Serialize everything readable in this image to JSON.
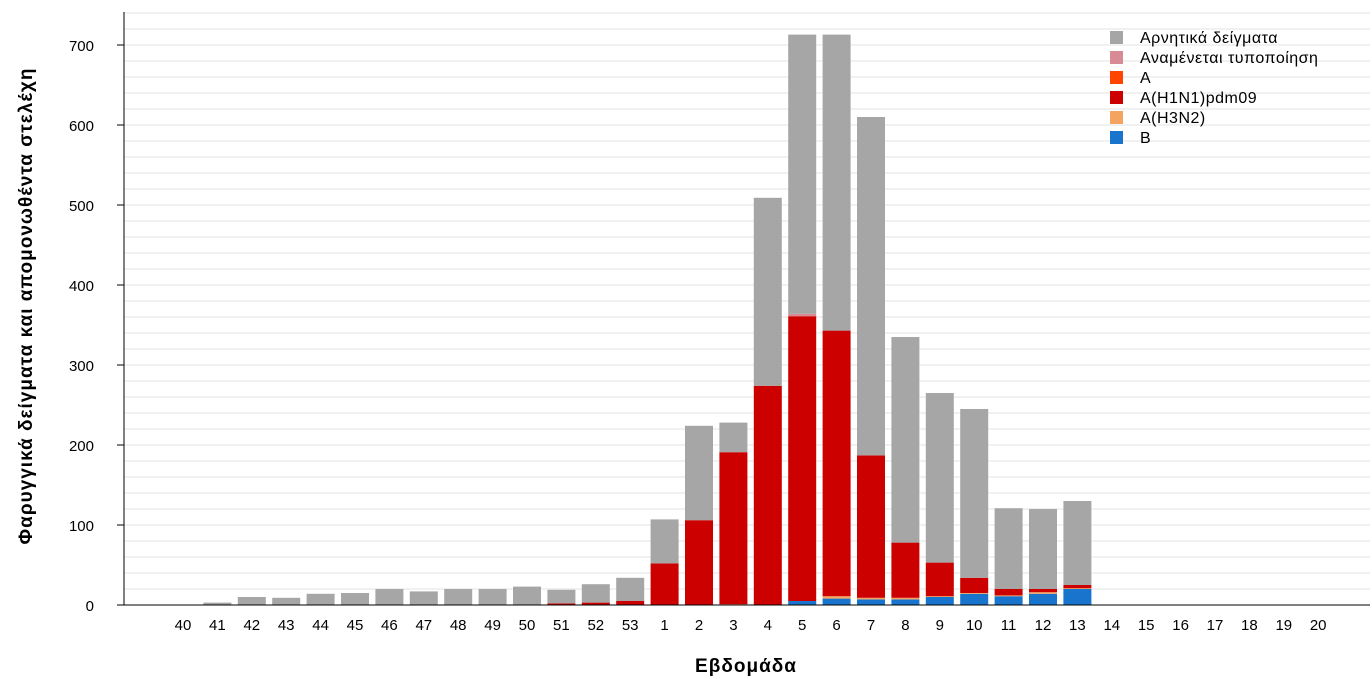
{
  "chart_data": {
    "type": "bar",
    "stacked": true,
    "xlabel": "Εβδομάδα",
    "ylabel": "Φαρυγγικά δείγματα και απομονωθέντα στελέχη",
    "ylim": [
      0,
      740
    ],
    "yticks": [
      0,
      100,
      200,
      300,
      400,
      500,
      600,
      700
    ],
    "grid": true,
    "legend_position": "top-right",
    "categories": [
      "40",
      "41",
      "42",
      "43",
      "44",
      "45",
      "46",
      "47",
      "48",
      "49",
      "50",
      "51",
      "52",
      "53",
      "1",
      "2",
      "3",
      "4",
      "5",
      "6",
      "7",
      "8",
      "9",
      "10",
      "11",
      "12",
      "13",
      "14",
      "15",
      "16",
      "17",
      "18",
      "19",
      "20"
    ],
    "series": [
      {
        "name": "B",
        "color": "#1874CD",
        "values": [
          0,
          0,
          0,
          0,
          0,
          0,
          0,
          0,
          0,
          0,
          0,
          0,
          0,
          0,
          0,
          0,
          0,
          0,
          5,
          8,
          7,
          7,
          10,
          14,
          11,
          14,
          20,
          0,
          0,
          0,
          0,
          0,
          0,
          0
        ]
      },
      {
        "name": "A(H3N2)",
        "color": "#F4A460",
        "values": [
          0,
          0,
          0,
          0,
          0,
          0,
          0,
          0,
          0,
          0,
          0,
          0,
          0,
          0,
          0,
          0,
          1,
          0,
          0,
          3,
          2,
          2,
          1,
          1,
          1,
          2,
          1,
          0,
          0,
          0,
          0,
          0,
          0,
          0
        ]
      },
      {
        "name": "A(H1N1)pdm09",
        "color": "#CD0000",
        "values": [
          0,
          0,
          0,
          0,
          0,
          0,
          0,
          0,
          0,
          0,
          0,
          2,
          3,
          5,
          52,
          106,
          190,
          274,
          356,
          332,
          178,
          69,
          42,
          19,
          8,
          4,
          4,
          0,
          0,
          0,
          0,
          0,
          0,
          0
        ]
      },
      {
        "name": "A",
        "color": "#FF4500",
        "values": [
          0,
          0,
          0,
          0,
          0,
          0,
          0,
          0,
          0,
          0,
          0,
          0,
          0,
          0,
          0,
          0,
          0,
          0,
          0,
          0,
          0,
          0,
          0,
          0,
          0,
          0,
          0,
          0,
          0,
          0,
          0,
          0,
          0,
          0
        ]
      },
      {
        "name": "Αναμένεται τυποποίηση",
        "color": "#D98B95",
        "values": [
          0,
          0,
          0,
          0,
          0,
          0,
          0,
          0,
          0,
          0,
          0,
          0,
          0,
          0,
          0,
          0,
          0,
          0,
          3,
          0,
          0,
          0,
          0,
          0,
          0,
          0,
          0,
          0,
          0,
          0,
          0,
          0,
          0,
          0
        ]
      },
      {
        "name": "Αρνητικά δείγματα",
        "color": "#A6A6A6",
        "values": [
          0,
          3,
          10,
          9,
          14,
          15,
          20,
          17,
          20,
          20,
          23,
          17,
          23,
          29,
          55,
          118,
          37,
          235,
          349,
          370,
          423,
          257,
          212,
          211,
          101,
          100,
          105,
          0,
          0,
          0,
          0,
          0,
          0,
          0
        ]
      }
    ],
    "legend_order": [
      "Αρνητικά δείγματα",
      "Αναμένεται τυποποίηση",
      "A",
      "A(H1N1)pdm09",
      "A(H3N2)",
      "B"
    ]
  }
}
